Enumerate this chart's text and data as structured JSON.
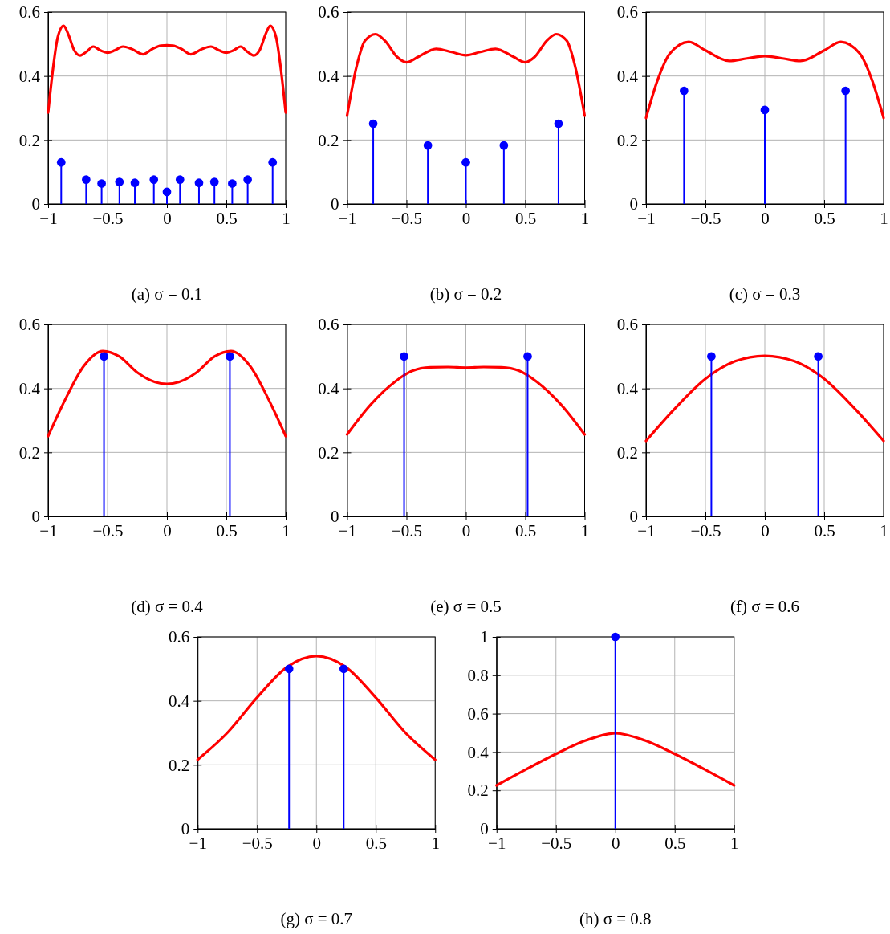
{
  "chart_data": [
    {
      "type": "line",
      "title": "(a) σ = 0.1",
      "xlim": [
        -1,
        1
      ],
      "ylim": [
        0,
        0.6
      ],
      "xticks": [
        -1,
        -0.5,
        0,
        0.5,
        1
      ],
      "yticks": [
        0,
        0.2,
        0.4,
        0.6
      ],
      "grid": true,
      "series": [
        {
          "type": "line",
          "color": "#ff0000",
          "x": [
            -1,
            -0.96,
            -0.92,
            -0.87,
            -0.83,
            -0.78,
            -0.73,
            -0.68,
            -0.62,
            -0.56,
            -0.5,
            -0.44,
            -0.37,
            -0.3,
            -0.2,
            -0.12,
            -0.05,
            0,
            0.05,
            0.12,
            0.2,
            0.3,
            0.37,
            0.44,
            0.5,
            0.56,
            0.62,
            0.68,
            0.73,
            0.78,
            0.83,
            0.87,
            0.92,
            0.96,
            1
          ],
          "values": [
            0.286,
            0.42,
            0.52,
            0.557,
            0.53,
            0.48,
            0.464,
            0.475,
            0.492,
            0.48,
            0.473,
            0.48,
            0.492,
            0.485,
            0.468,
            0.485,
            0.495,
            0.496,
            0.495,
            0.485,
            0.468,
            0.485,
            0.492,
            0.48,
            0.473,
            0.48,
            0.492,
            0.475,
            0.464,
            0.48,
            0.53,
            0.557,
            0.52,
            0.42,
            0.286
          ]
        },
        {
          "type": "lollipop",
          "color": "#0000ff",
          "marker": "circle",
          "x": [
            -0.89,
            -0.68,
            -0.55,
            -0.4,
            -0.27,
            -0.11,
            0,
            0.11,
            0.27,
            0.4,
            0.55,
            0.68,
            0.89
          ],
          "values": [
            0.13,
            0.076,
            0.064,
            0.069,
            0.066,
            0.076,
            0.038,
            0.076,
            0.066,
            0.069,
            0.064,
            0.076,
            0.13
          ]
        }
      ]
    },
    {
      "type": "line",
      "title": "(b) σ = 0.2",
      "xlim": [
        -1,
        1
      ],
      "ylim": [
        0,
        0.6
      ],
      "xticks": [
        -1,
        -0.5,
        0,
        0.5,
        1
      ],
      "yticks": [
        0,
        0.2,
        0.4,
        0.6
      ],
      "grid": true,
      "series": [
        {
          "type": "line",
          "color": "#ff0000",
          "x": [
            -1,
            -0.92,
            -0.85,
            -0.76,
            -0.68,
            -0.58,
            -0.5,
            -0.4,
            -0.25,
            -0.12,
            0,
            0.12,
            0.25,
            0.4,
            0.5,
            0.58,
            0.68,
            0.76,
            0.85,
            0.92,
            1
          ],
          "values": [
            0.276,
            0.43,
            0.51,
            0.531,
            0.51,
            0.46,
            0.443,
            0.46,
            0.485,
            0.475,
            0.465,
            0.475,
            0.485,
            0.46,
            0.443,
            0.46,
            0.51,
            0.531,
            0.51,
            0.43,
            0.276
          ]
        },
        {
          "type": "lollipop",
          "color": "#0000ff",
          "marker": "circle",
          "x": [
            -0.78,
            -0.32,
            0,
            0.32,
            0.78
          ],
          "values": [
            0.251,
            0.183,
            0.13,
            0.183,
            0.251
          ]
        }
      ]
    },
    {
      "type": "line",
      "title": "(c) σ = 0.3",
      "xlim": [
        -1,
        1
      ],
      "ylim": [
        0,
        0.6
      ],
      "xticks": [
        -1,
        -0.5,
        0,
        0.5,
        1
      ],
      "yticks": [
        0,
        0.2,
        0.4,
        0.6
      ],
      "grid": true,
      "series": [
        {
          "type": "line",
          "color": "#ff0000",
          "x": [
            -1,
            -0.9,
            -0.8,
            -0.64,
            -0.5,
            -0.3,
            -0.15,
            0,
            0.15,
            0.3,
            0.5,
            0.64,
            0.8,
            0.9,
            1
          ],
          "values": [
            0.269,
            0.39,
            0.47,
            0.507,
            0.48,
            0.447,
            0.455,
            0.462,
            0.455,
            0.447,
            0.48,
            0.507,
            0.47,
            0.39,
            0.269
          ]
        },
        {
          "type": "lollipop",
          "color": "#0000ff",
          "marker": "circle",
          "x": [
            -0.68,
            0,
            0.68
          ],
          "values": [
            0.354,
            0.294,
            0.354
          ]
        }
      ]
    },
    {
      "type": "line",
      "title": "(d) σ = 0.4",
      "xlim": [
        -1,
        1
      ],
      "ylim": [
        0,
        0.6
      ],
      "xticks": [
        -1,
        -0.5,
        0,
        0.5,
        1
      ],
      "yticks": [
        0,
        0.2,
        0.4,
        0.6
      ],
      "grid": true,
      "series": [
        {
          "type": "line",
          "color": "#ff0000",
          "x": [
            -1,
            -0.85,
            -0.7,
            -0.54,
            -0.4,
            -0.25,
            -0.1,
            0,
            0.1,
            0.25,
            0.4,
            0.54,
            0.7,
            0.85,
            1
          ],
          "values": [
            0.251,
            0.37,
            0.47,
            0.517,
            0.5,
            0.45,
            0.42,
            0.414,
            0.42,
            0.45,
            0.5,
            0.517,
            0.47,
            0.37,
            0.251
          ]
        },
        {
          "type": "lollipop",
          "color": "#0000ff",
          "marker": "circle",
          "x": [
            -0.53,
            0.53
          ],
          "values": [
            0.5,
            0.5
          ]
        }
      ]
    },
    {
      "type": "line",
      "title": "(e) σ = 0.5",
      "xlim": [
        -1,
        1
      ],
      "ylim": [
        0,
        0.6
      ],
      "xticks": [
        -1,
        -0.5,
        0,
        0.5,
        1
      ],
      "yticks": [
        0,
        0.2,
        0.4,
        0.6
      ],
      "grid": true,
      "series": [
        {
          "type": "line",
          "color": "#ff0000",
          "x": [
            -1,
            -0.8,
            -0.6,
            -0.45,
            -0.3,
            -0.15,
            0,
            0.15,
            0.3,
            0.45,
            0.6,
            0.8,
            1
          ],
          "values": [
            0.256,
            0.35,
            0.42,
            0.455,
            0.466,
            0.467,
            0.465,
            0.467,
            0.466,
            0.455,
            0.42,
            0.35,
            0.256
          ]
        },
        {
          "type": "lollipop",
          "color": "#0000ff",
          "marker": "circle",
          "x": [
            -0.52,
            0.52
          ],
          "values": [
            0.5,
            0.5
          ]
        }
      ]
    },
    {
      "type": "line",
      "title": "(f) σ = 0.6",
      "xlim": [
        -1,
        1
      ],
      "ylim": [
        0,
        0.6
      ],
      "xticks": [
        -1,
        -0.5,
        0,
        0.5,
        1
      ],
      "yticks": [
        0,
        0.2,
        0.4,
        0.6
      ],
      "grid": true,
      "series": [
        {
          "type": "line",
          "color": "#ff0000",
          "x": [
            -1,
            -0.75,
            -0.5,
            -0.25,
            0,
            0.25,
            0.5,
            0.75,
            1
          ],
          "values": [
            0.236,
            0.34,
            0.43,
            0.485,
            0.502,
            0.485,
            0.43,
            0.34,
            0.236
          ]
        },
        {
          "type": "lollipop",
          "color": "#0000ff",
          "marker": "circle",
          "x": [
            -0.45,
            0.45
          ],
          "values": [
            0.5,
            0.5
          ]
        }
      ]
    },
    {
      "type": "line",
      "title": "(g) σ = 0.7",
      "xlim": [
        -1,
        1
      ],
      "ylim": [
        0,
        0.6
      ],
      "xticks": [
        -1,
        -0.5,
        0,
        0.5,
        1
      ],
      "yticks": [
        0,
        0.2,
        0.4,
        0.6
      ],
      "grid": true,
      "series": [
        {
          "type": "line",
          "color": "#ff0000",
          "x": [
            -1,
            -0.75,
            -0.5,
            -0.25,
            0,
            0.25,
            0.5,
            0.75,
            1
          ],
          "values": [
            0.216,
            0.3,
            0.41,
            0.505,
            0.54,
            0.505,
            0.41,
            0.3,
            0.216
          ]
        },
        {
          "type": "lollipop",
          "color": "#0000ff",
          "marker": "circle",
          "x": [
            -0.23,
            0.23
          ],
          "values": [
            0.5,
            0.5
          ]
        }
      ]
    },
    {
      "type": "line",
      "title": "(h) σ = 0.8",
      "xlim": [
        -1,
        1
      ],
      "ylim": [
        0,
        1
      ],
      "xticks": [
        -1,
        -0.5,
        0,
        0.5,
        1
      ],
      "yticks": [
        0,
        0.2,
        0.4,
        0.6,
        0.8,
        1
      ],
      "grid": true,
      "series": [
        {
          "type": "line",
          "color": "#ff0000",
          "x": [
            -1,
            -0.75,
            -0.5,
            -0.25,
            0,
            0.25,
            0.5,
            0.75,
            1
          ],
          "values": [
            0.226,
            0.31,
            0.39,
            0.46,
            0.498,
            0.46,
            0.39,
            0.31,
            0.226
          ]
        },
        {
          "type": "lollipop",
          "color": "#0000ff",
          "marker": "circle",
          "x": [
            0
          ],
          "values": [
            1
          ]
        }
      ]
    }
  ]
}
